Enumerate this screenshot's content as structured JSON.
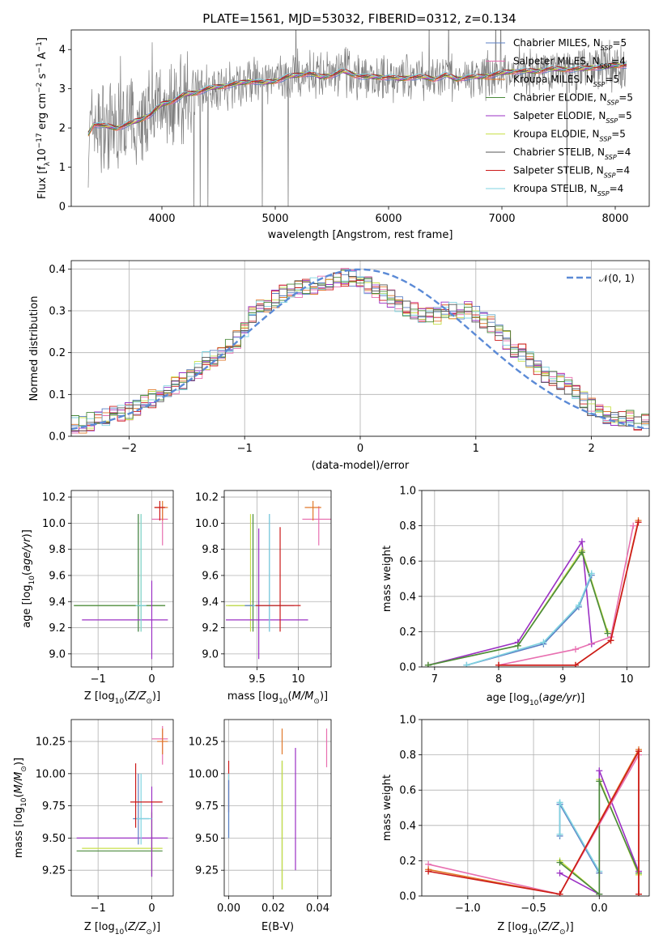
{
  "figure_title": "PLATE=1561, MJD=53032, FIBERID=0312, z=0.134",
  "colors": {
    "chabrier_miles": "#5b7fc4",
    "salpeter_miles": "#e86fb0",
    "kroupa_miles": "#e0782a",
    "chabrier_elodie": "#4a8a3c",
    "salpeter_elodie": "#9b30c4",
    "kroupa_elodie": "#c8e04a",
    "chabrier_stelib": "#555555",
    "salpeter_stelib": "#cc1a1a",
    "kroupa_stelib": "#7fd3e0",
    "observed": "#808080",
    "normal": "#5b8ad6",
    "grid": "#b0b0b0"
  },
  "chart_data": [
    {
      "id": "spectrum",
      "type": "line",
      "title": "PLATE=1561, MJD=53032, FIBERID=0312, z=0.134",
      "xlabel": "wavelength [Angstrom, rest frame]",
      "ylabel": "Flux [f",
      "ylabel_full": "Flux [fλ10−17 erg cm−2 s−1 A−1]",
      "xlim": [
        3200,
        8300
      ],
      "ylim": [
        0,
        4.5
      ],
      "xticks": [
        4000,
        5000,
        6000,
        7000,
        8000
      ],
      "yticks": [
        0,
        1,
        2,
        3,
        4
      ],
      "grid": false,
      "legend": "top-right",
      "legend_entries": [
        {
          "model": "Chabrier MILES",
          "nssp": "5",
          "color_key": "chabrier_miles"
        },
        {
          "model": "Salpeter MILES",
          "nssp": "4",
          "color_key": "salpeter_miles"
        },
        {
          "model": "Kroupa MILES",
          "nssp": "5",
          "color_key": "kroupa_miles"
        },
        {
          "model": "Chabrier ELODIE",
          "nssp": "5",
          "color_key": "chabrier_elodie"
        },
        {
          "model": "Salpeter ELODIE",
          "nssp": "5",
          "color_key": "salpeter_elodie"
        },
        {
          "model": "Kroupa ELODIE",
          "nssp": "5",
          "color_key": "kroupa_elodie"
        },
        {
          "model": "Chabrier STELIB",
          "nssp": "4",
          "color_key": "chabrier_stelib"
        },
        {
          "model": "Salpeter STELIB",
          "nssp": "4",
          "color_key": "salpeter_stelib"
        },
        {
          "model": "Kroupa STELIB",
          "nssp": "4",
          "color_key": "kroupa_stelib"
        }
      ],
      "continuum": {
        "x": [
          3350,
          3400,
          3500,
          3600,
          3700,
          3800,
          3900,
          4000,
          4100,
          4200,
          4300,
          4400,
          4500,
          4600,
          4700,
          4800,
          4900,
          5000,
          5100,
          5200,
          5300,
          5400,
          5500,
          5600,
          5700,
          5800,
          5900,
          6000,
          6100,
          6200,
          6300,
          6400,
          6500,
          6600,
          6700,
          6800,
          6900,
          7000,
          7100,
          7200,
          7300,
          7400,
          7500,
          7600,
          7700,
          7800,
          7900,
          8000,
          8100
        ],
        "y": [
          1.85,
          2.1,
          2.05,
          2.0,
          2.1,
          2.2,
          2.35,
          2.6,
          2.7,
          2.85,
          2.9,
          3.0,
          3.05,
          3.1,
          3.15,
          3.2,
          3.15,
          3.2,
          3.3,
          3.35,
          3.4,
          3.3,
          3.35,
          3.45,
          3.35,
          3.3,
          3.3,
          3.3,
          3.25,
          3.3,
          3.3,
          3.25,
          3.35,
          3.25,
          3.3,
          3.3,
          3.35,
          3.4,
          3.45,
          3.45,
          3.45,
          3.5,
          3.5,
          3.5,
          3.5,
          3.55,
          3.55,
          3.6,
          3.6
        ]
      }
    },
    {
      "id": "residuals",
      "type": "line",
      "xlabel": "(data-model)/error",
      "ylabel": "Normed distribution",
      "xlim": [
        -2.5,
        2.5
      ],
      "ylim": [
        0,
        0.42
      ],
      "xticks": [
        -2,
        -1,
        0,
        1,
        2
      ],
      "yticks": [
        0.0,
        0.1,
        0.2,
        0.3,
        0.4
      ],
      "grid": true,
      "legend": "top-right",
      "legend_label": "𝒩(0, 1)",
      "bin_width": 0.1,
      "histogram": [
        0.03,
        0.03,
        0.035,
        0.04,
        0.045,
        0.05,
        0.055,
        0.06,
        0.07,
        0.08,
        0.09,
        0.1,
        0.11,
        0.12,
        0.13,
        0.15,
        0.16,
        0.18,
        0.19,
        0.2,
        0.21,
        0.23,
        0.26,
        0.29,
        0.31,
        0.32,
        0.33,
        0.34,
        0.35,
        0.35,
        0.36,
        0.36,
        0.37,
        0.37,
        0.37,
        0.38,
        0.38,
        0.37,
        0.36,
        0.35,
        0.34,
        0.33,
        0.32,
        0.31,
        0.3,
        0.29,
        0.29,
        0.29,
        0.3,
        0.3,
        0.3,
        0.3,
        0.29,
        0.28,
        0.27,
        0.25,
        0.23,
        0.21,
        0.2,
        0.18,
        0.17,
        0.15,
        0.14,
        0.13,
        0.12,
        0.11,
        0.09,
        0.07,
        0.06,
        0.05,
        0.045,
        0.04,
        0.04,
        0.035,
        0.035
      ]
    },
    {
      "id": "age-vs-z",
      "type": "scatter",
      "xlabel": "Z [log",
      "xlabel_full": "Z [log10(Z/Z⊙)]",
      "ylabel": "age  [log",
      "ylabel_full": "age [log10(age/yr)]",
      "xlim": [
        -1.5,
        0.4
      ],
      "ylim": [
        8.9,
        10.25
      ],
      "xticks": [
        -1,
        0
      ],
      "yticks": [
        9.0,
        9.2,
        9.4,
        9.6,
        9.8,
        10.0,
        10.2
      ],
      "grid": true,
      "points": [
        {
          "color_key": "chabrier_miles",
          "x": -0.25,
          "xerr": [
            1.2,
            0.5
          ],
          "y": 9.37,
          "yerr": [
            0.2,
            0.7
          ]
        },
        {
          "color_key": "kroupa_elodie",
          "x": -0.2,
          "xerr": [
            1.25,
            0.45
          ],
          "y": 9.37,
          "yerr": [
            0.2,
            0.7
          ]
        },
        {
          "color_key": "chabrier_elodie",
          "x": -0.25,
          "xerr": [
            1.2,
            0.5
          ],
          "y": 9.37,
          "yerr": [
            0.2,
            0.7
          ]
        },
        {
          "color_key": "salpeter_elodie",
          "x": 0.0,
          "xerr": [
            1.3,
            0.3
          ],
          "y": 9.26,
          "yerr": [
            0.3,
            0.3
          ]
        },
        {
          "color_key": "kroupa_stelib",
          "x": -0.2,
          "xerr": [
            0.1,
            0.1
          ],
          "y": 9.37,
          "yerr": [
            0.2,
            0.7
          ]
        },
        {
          "color_key": "salpeter_miles",
          "x": 0.2,
          "xerr": [
            0.2,
            0.1
          ],
          "y": 10.03,
          "yerr": [
            0.2,
            0.1
          ]
        },
        {
          "color_key": "kroupa_miles",
          "x": 0.2,
          "xerr": [
            0.15,
            0.1
          ],
          "y": 10.12,
          "yerr": [
            0.1,
            0.05
          ]
        },
        {
          "color_key": "salpeter_stelib",
          "x": 0.15,
          "xerr": [
            0.1,
            0.1
          ],
          "y": 10.12,
          "yerr": [
            0.1,
            0.05
          ]
        }
      ]
    },
    {
      "id": "age-vs-mass",
      "type": "scatter",
      "xlabel": "mass [log",
      "xlabel_full": "mass [log10(M/M⊙)]",
      "xlim": [
        9.1,
        10.4
      ],
      "ylim": [
        8.9,
        10.25
      ],
      "xticks": [
        9.5,
        10.0
      ],
      "yticks": [
        9.0,
        9.2,
        9.4,
        9.6,
        9.8,
        10.0,
        10.2
      ],
      "grid": true,
      "points": [
        {
          "color_key": "chabrier_elodie",
          "x": 9.45,
          "xerr": [
            0.3,
            0.4
          ],
          "y": 9.37,
          "yerr": [
            0.2,
            0.7
          ]
        },
        {
          "color_key": "kroupa_elodie",
          "x": 9.42,
          "xerr": [
            0.3,
            0.4
          ],
          "y": 9.37,
          "yerr": [
            0.2,
            0.7
          ]
        },
        {
          "color_key": "salpeter_elodie",
          "x": 9.52,
          "xerr": [
            0.4,
            0.6
          ],
          "y": 9.26,
          "yerr": [
            0.3,
            0.7
          ]
        },
        {
          "color_key": "chabrier_miles",
          "x": 9.65,
          "xerr": [
            0.3,
            0.3
          ],
          "y": 9.37,
          "yerr": [
            0.2,
            0.7
          ]
        },
        {
          "color_key": "kroupa_stelib",
          "x": 9.65,
          "xerr": [
            0.2,
            0.2
          ],
          "y": 9.37,
          "yerr": [
            0.2,
            0.7
          ]
        },
        {
          "color_key": "salpeter_stelib",
          "x": 9.78,
          "xerr": [
            0.3,
            0.25
          ],
          "y": 9.37,
          "yerr": [
            0.2,
            0.6
          ]
        },
        {
          "color_key": "salpeter_miles",
          "x": 10.25,
          "xerr": [
            0.2,
            0.2
          ],
          "y": 10.03,
          "yerr": [
            0.2,
            0.1
          ]
        },
        {
          "color_key": "kroupa_miles",
          "x": 10.18,
          "xerr": [
            0.1,
            0.1
          ],
          "y": 10.12,
          "yerr": [
            0.1,
            0.05
          ]
        }
      ]
    },
    {
      "id": "weight-vs-age",
      "type": "line",
      "xlabel": "age  [log",
      "xlabel_full": "age [log10(age/yr)]",
      "ylabel": "mass weight",
      "xlim": [
        6.8,
        10.35
      ],
      "ylim": [
        0,
        1.0
      ],
      "xticks": [
        7,
        8,
        9,
        10
      ],
      "yticks": [
        0.0,
        0.2,
        0.4,
        0.6,
        0.8,
        1.0
      ],
      "grid": true,
      "series": [
        {
          "color_key": "salpeter_elodie",
          "x": [
            6.9,
            8.3,
            9.3,
            9.45
          ],
          "y": [
            0.01,
            0.14,
            0.71,
            0.13
          ]
        },
        {
          "color_key": "kroupa_elodie",
          "x": [
            6.9,
            8.3,
            9.3,
            9.7
          ],
          "y": [
            0.01,
            0.12,
            0.66,
            0.2
          ]
        },
        {
          "color_key": "chabrier_elodie",
          "x": [
            6.9,
            8.3,
            9.3,
            9.7
          ],
          "y": [
            0.01,
            0.12,
            0.65,
            0.19
          ]
        },
        {
          "color_key": "chabrier_miles",
          "x": [
            7.5,
            8.7,
            9.25,
            9.45
          ],
          "y": [
            0.01,
            0.13,
            0.34,
            0.52
          ]
        },
        {
          "color_key": "kroupa_stelib",
          "x": [
            7.5,
            8.7,
            9.25,
            9.45
          ],
          "y": [
            0.01,
            0.14,
            0.35,
            0.53
          ]
        },
        {
          "color_key": "salpeter_miles",
          "x": [
            8.0,
            9.2,
            9.75,
            10.1
          ],
          "y": [
            0.01,
            0.1,
            0.17,
            0.8
          ]
        },
        {
          "color_key": "kroupa_miles",
          "x": [
            8.0,
            9.2,
            9.75,
            10.18
          ],
          "y": [
            0.01,
            0.01,
            0.15,
            0.83
          ]
        },
        {
          "color_key": "salpeter_stelib",
          "x": [
            8.0,
            9.2,
            9.75,
            10.18
          ],
          "y": [
            0.01,
            0.01,
            0.15,
            0.82
          ]
        }
      ]
    },
    {
      "id": "mass-vs-z",
      "type": "scatter",
      "xlabel": "Z [log",
      "xlabel_full": "Z [log10(Z/Z⊙)]",
      "ylabel": "mass [log",
      "ylabel_full": "mass [log10(M/M⊙)]",
      "xlim": [
        -1.5,
        0.4
      ],
      "ylim": [
        9.05,
        10.42
      ],
      "xticks": [
        -1,
        0
      ],
      "yticks": [
        9.25,
        9.5,
        9.75,
        10.0,
        10.25
      ],
      "grid": true,
      "points": [
        {
          "color_key": "chabrier_elodie",
          "x": 0.0,
          "xerr": [
            1.4,
            0.2
          ],
          "y": 9.4,
          "yerr": [
            0.2,
            0.3
          ]
        },
        {
          "color_key": "kroupa_elodie",
          "x": 0.0,
          "xerr": [
            1.3,
            0.2
          ],
          "y": 9.42,
          "yerr": [
            0.2,
            0.3
          ]
        },
        {
          "color_key": "salpeter_elodie",
          "x": 0.0,
          "xerr": [
            1.4,
            0.3
          ],
          "y": 9.5,
          "yerr": [
            0.3,
            0.4
          ]
        },
        {
          "color_key": "chabrier_miles",
          "x": -0.25,
          "xerr": [
            0.1,
            0.2
          ],
          "y": 9.65,
          "yerr": [
            0.2,
            0.35
          ]
        },
        {
          "color_key": "kroupa_stelib",
          "x": -0.2,
          "xerr": [
            0.1,
            0.2
          ],
          "y": 9.65,
          "yerr": [
            0.2,
            0.35
          ]
        },
        {
          "color_key": "salpeter_stelib",
          "x": -0.3,
          "xerr": [
            0.1,
            0.5
          ],
          "y": 9.78,
          "yerr": [
            0.2,
            0.3
          ]
        },
        {
          "color_key": "salpeter_miles",
          "x": 0.2,
          "xerr": [
            0.2,
            0.1
          ],
          "y": 10.27,
          "yerr": [
            0.2,
            0.1
          ]
        },
        {
          "color_key": "kroupa_miles",
          "x": 0.2,
          "xerr": [
            0.1,
            0.1
          ],
          "y": 10.25,
          "yerr": [
            0.1,
            0.1
          ]
        }
      ]
    },
    {
      "id": "mass-vs-ebv",
      "type": "scatter",
      "xlabel": "E(B-V)",
      "xlim": [
        -0.002,
        0.046
      ],
      "ylim": [
        9.05,
        10.42
      ],
      "xticks": [
        0.0,
        0.02,
        0.04
      ],
      "xticklabels": [
        "0.00",
        "0.02",
        "0.04"
      ],
      "yticks": [
        9.25,
        9.5,
        9.75,
        10.0,
        10.25
      ],
      "grid": true,
      "points": [
        {
          "color_key": "salpeter_stelib",
          "x": 0.0,
          "y": 9.9,
          "yerr": [
            0.2,
            0.2
          ]
        },
        {
          "color_key": "kroupa_stelib",
          "x": 0.0,
          "y": 9.8,
          "yerr": [
            0.3,
            0.2
          ]
        },
        {
          "color_key": "chabrier_miles",
          "x": 0.0,
          "y": 9.75,
          "yerr": [
            0.25,
            0.2
          ]
        },
        {
          "color_key": "chabrier_elodie",
          "x": 0.024,
          "y": 9.45,
          "yerr": [
            0.35,
            0.65
          ]
        },
        {
          "color_key": "kroupa_elodie",
          "x": 0.024,
          "y": 9.45,
          "yerr": [
            0.35,
            0.65
          ]
        },
        {
          "color_key": "salpeter_elodie",
          "x": 0.03,
          "y": 9.7,
          "yerr": [
            0.45,
            0.5
          ]
        },
        {
          "color_key": "kroupa_miles",
          "x": 0.024,
          "y": 10.25,
          "yerr": [
            0.1,
            0.1
          ]
        },
        {
          "color_key": "salpeter_miles",
          "x": 0.044,
          "y": 10.2,
          "yerr": [
            0.15,
            0.15
          ]
        }
      ]
    },
    {
      "id": "weight-vs-z",
      "type": "line",
      "xlabel": "Z [log",
      "xlabel_full": "Z [log10(Z/Z⊙)]",
      "ylabel": "mass weight",
      "xlim": [
        -1.35,
        0.38
      ],
      "ylim": [
        0,
        1.0
      ],
      "xticks": [
        -1.0,
        -0.5,
        0.0
      ],
      "xticklabels": [
        "−1.0",
        "−0.5",
        "0.0"
      ],
      "yticks": [
        0.0,
        0.2,
        0.4,
        0.6,
        0.8,
        1.0
      ],
      "grid": true,
      "series": [
        {
          "color_key": "chabrier_miles",
          "x": [
            -0.3,
            -0.3,
            0.0,
            -0.3
          ],
          "y": [
            0.34,
            0.52,
            0.13,
            0.52
          ]
        },
        {
          "color_key": "kroupa_stelib",
          "x": [
            -0.3,
            -0.3,
            0.0,
            -0.3
          ],
          "y": [
            0.35,
            0.53,
            0.14,
            0.53
          ]
        },
        {
          "color_key": "kroupa_elodie",
          "x": [
            -0.3,
            0.0,
            0.0,
            0.3,
            0.3
          ],
          "y": [
            0.2,
            0.01,
            0.66,
            0.12,
            0.12
          ]
        },
        {
          "color_key": "salpeter_elodie",
          "x": [
            -0.3,
            0.0,
            0.0,
            0.3
          ],
          "y": [
            0.13,
            0.01,
            0.71,
            0.14
          ]
        },
        {
          "color_key": "chabrier_elodie",
          "x": [
            -0.3,
            0.0,
            0.0,
            0.3
          ],
          "y": [
            0.19,
            0.01,
            0.65,
            0.13
          ]
        },
        {
          "color_key": "salpeter_miles",
          "x": [
            -1.3,
            -0.3,
            0.3,
            0.3
          ],
          "y": [
            0.18,
            0.01,
            0.8,
            0.01
          ]
        },
        {
          "color_key": "kroupa_miles",
          "x": [
            -1.3,
            -0.3,
            0.3,
            0.3
          ],
          "y": [
            0.15,
            0.01,
            0.83,
            0.01
          ]
        },
        {
          "color_key": "salpeter_stelib",
          "x": [
            -1.3,
            -0.3,
            0.3,
            0.3
          ],
          "y": [
            0.14,
            0.01,
            0.82,
            0.01
          ]
        }
      ]
    }
  ]
}
